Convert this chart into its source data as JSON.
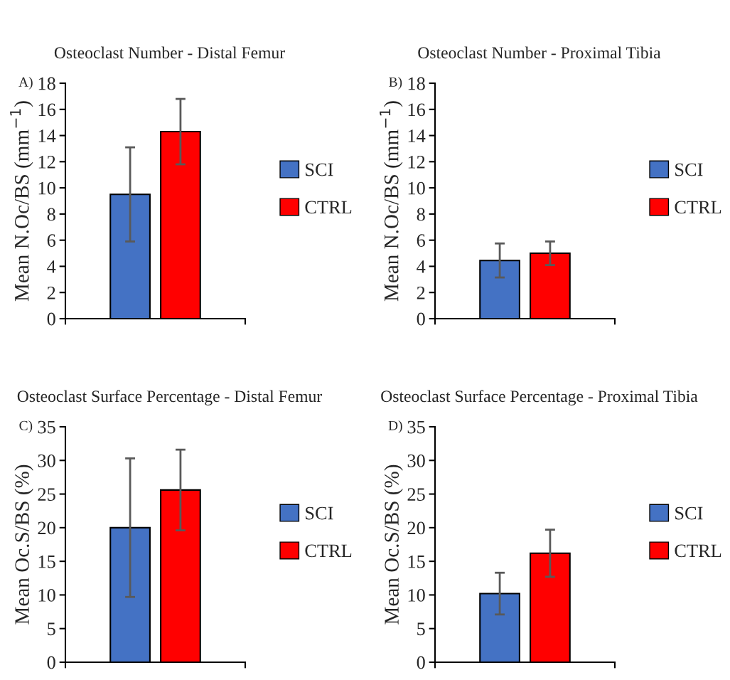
{
  "chart_data": [
    {
      "type": "bar",
      "title": "Osteoclast Number - Distal Femur",
      "ylabel": "Mean N.Oc/BS (mm$^{−1}$)",
      "annotations": [
        "A)"
      ],
      "categories": [
        null
      ],
      "ylim": [
        0,
        18
      ],
      "yticks": [
        0,
        2,
        4,
        6,
        8,
        10,
        12,
        14,
        16,
        18
      ],
      "legend": "right",
      "grid": false,
      "series": [
        {
          "name": "SCI",
          "color": "#4472c4",
          "values": [
            9.5
          ],
          "errors": [
            3.6
          ]
        },
        {
          "name": "CTRL",
          "color": "#ff0000",
          "values": [
            14.3
          ],
          "errors": [
            2.5
          ]
        }
      ]
    },
    {
      "type": "bar",
      "title": "Osteoclast Number - Proximal Tibia",
      "ylabel": "Mean N.Oc/BS (mm$^{−1}$)",
      "annotations": [
        "B)"
      ],
      "categories": [
        null
      ],
      "ylim": [
        0,
        18
      ],
      "yticks": [
        0,
        2,
        4,
        6,
        8,
        10,
        12,
        14,
        16,
        18
      ],
      "legend": "right",
      "grid": false,
      "series": [
        {
          "name": "SCI",
          "color": "#4472c4",
          "values": [
            4.45
          ],
          "errors": [
            1.3
          ]
        },
        {
          "name": "CTRL",
          "color": "#ff0000",
          "values": [
            5.0
          ],
          "errors": [
            0.9
          ]
        }
      ]
    },
    {
      "type": "bar",
      "title": "Osteoclast Surface Percentage - Distal Femur",
      "ylabel": "Mean Oc.S/BS (%)",
      "annotations": [
        "C)"
      ],
      "categories": [
        null
      ],
      "ylim": [
        0,
        35
      ],
      "yticks": [
        0,
        5,
        10,
        15,
        20,
        25,
        30,
        35
      ],
      "legend": "right",
      "grid": false,
      "series": [
        {
          "name": "SCI",
          "color": "#4472c4",
          "values": [
            20.0
          ],
          "errors": [
            10.3
          ]
        },
        {
          "name": "CTRL",
          "color": "#ff0000",
          "values": [
            25.6
          ],
          "errors": [
            6.0
          ]
        }
      ]
    },
    {
      "type": "bar",
      "title": "Osteoclast Surface Percentage - Proximal Tibia",
      "ylabel": "Mean Oc.S/BS (%)",
      "annotations": [
        "D)"
      ],
      "categories": [
        null
      ],
      "ylim": [
        0,
        35
      ],
      "yticks": [
        0,
        5,
        10,
        15,
        20,
        25,
        30,
        35
      ],
      "legend": "right",
      "grid": false,
      "series": [
        {
          "name": "SCI",
          "color": "#4472c4",
          "values": [
            10.2
          ],
          "errors": [
            3.1
          ]
        },
        {
          "name": "CTRL",
          "color": "#ff0000",
          "values": [
            16.2
          ],
          "errors": [
            3.5
          ]
        }
      ]
    }
  ]
}
